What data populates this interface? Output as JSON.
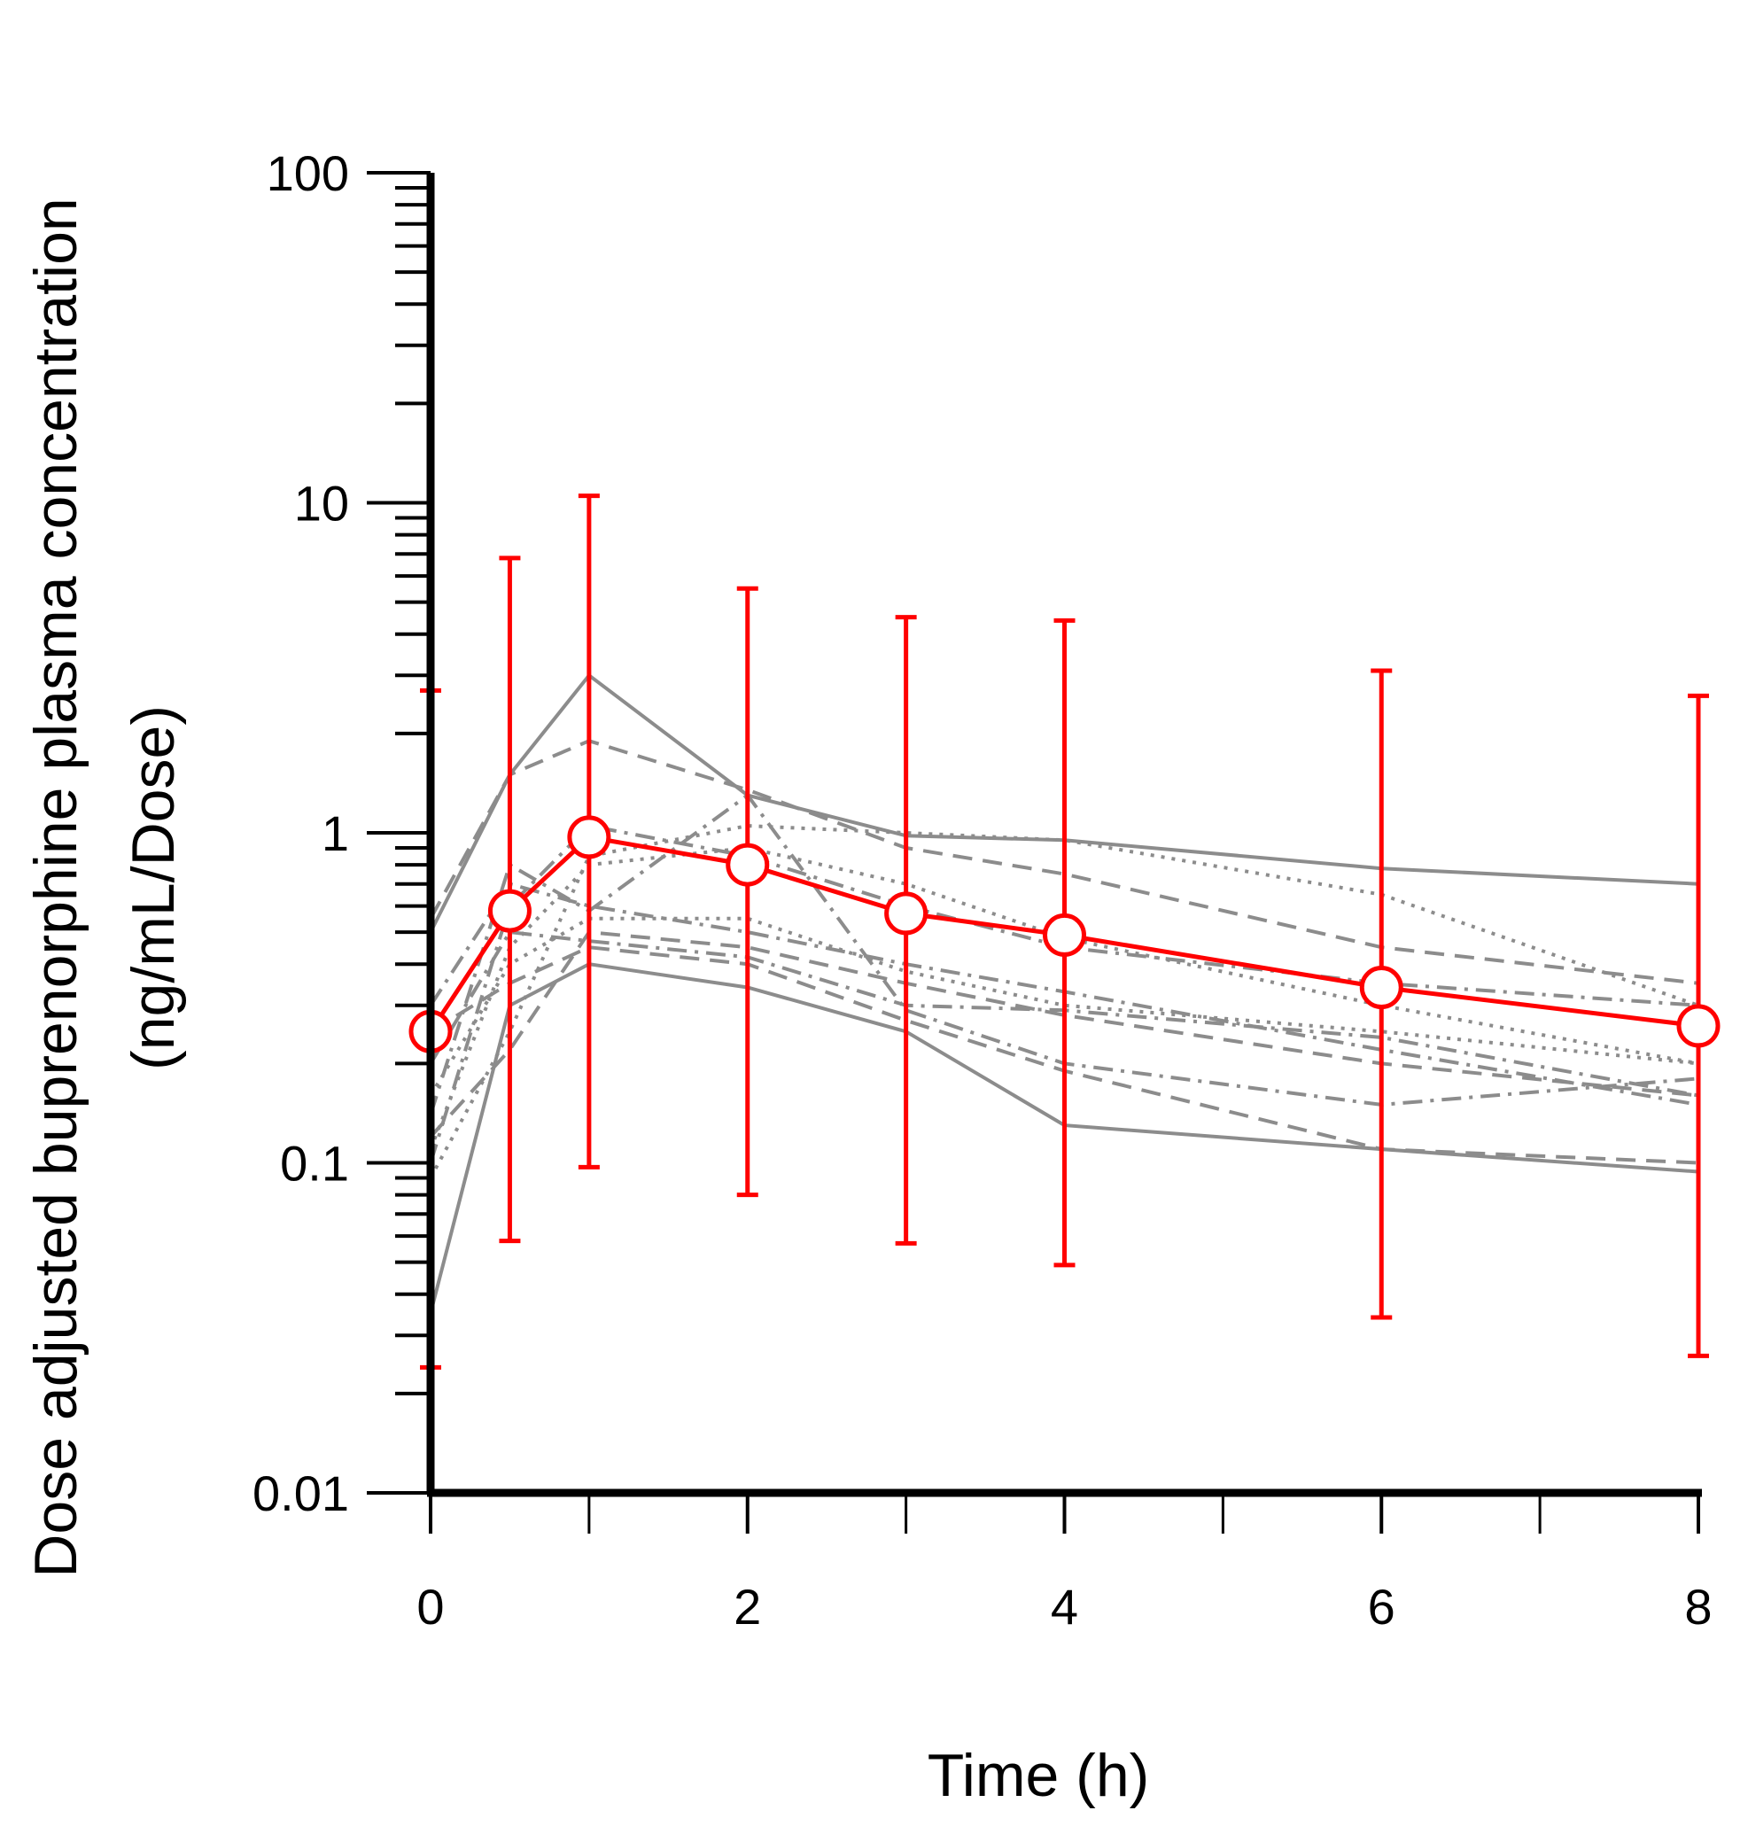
{
  "chart_data": {
    "type": "line",
    "title": "",
    "xlabel": "Time (h)",
    "ylabel_line1": "Dose adjusted buprenorphine plasma concentration",
    "ylabel_line2": "(ng/mL/Dose)",
    "yscale": "log",
    "ylim": [
      0.01,
      100
    ],
    "xlim": [
      0,
      8
    ],
    "grid": false,
    "x_ticks": [
      0,
      2,
      4,
      6,
      8
    ],
    "x_tick_labels": [
      "0",
      "2",
      "4",
      "6",
      "8"
    ],
    "x_minor_ticks": [
      1,
      3,
      5,
      7
    ],
    "y_ticks": [
      0.01,
      0.1,
      1,
      10,
      100
    ],
    "y_tick_labels": [
      "0.01",
      "0.1",
      "1",
      "10",
      "100"
    ],
    "mean": {
      "name": "Mean",
      "color": "#ff0000",
      "x": [
        0,
        0.5,
        1,
        2,
        3,
        4,
        6,
        8
      ],
      "y": [
        0.25,
        0.58,
        0.97,
        0.8,
        0.57,
        0.49,
        0.34,
        0.26
      ],
      "err_low": [
        0.024,
        0.058,
        0.097,
        0.08,
        0.057,
        0.049,
        0.034,
        0.026
      ],
      "err_high": [
        2.7,
        6.8,
        10.5,
        5.5,
        4.5,
        4.4,
        3.1,
        2.6
      ]
    },
    "individual_color": "#8c8c8c",
    "individual_x": [
      0,
      0.5,
      1,
      2,
      3,
      4,
      6,
      8
    ],
    "individuals": [
      {
        "dash": "solid",
        "y": [
          0.5,
          1.5,
          3.0,
          1.3,
          0.98,
          0.95,
          0.78,
          0.7
        ]
      },
      {
        "dash": "solid",
        "y": [
          0.035,
          0.3,
          0.4,
          0.34,
          0.25,
          0.13,
          0.11,
          0.094
        ]
      },
      {
        "dash": "dash",
        "y": [
          0.55,
          1.5,
          1.9,
          1.35,
          0.9,
          0.75,
          0.45,
          0.35
        ]
      },
      {
        "dash": "dashdot",
        "y": [
          0.14,
          0.8,
          0.58,
          1.3,
          0.29,
          0.2,
          0.15,
          0.18
        ]
      },
      {
        "dash": "dot",
        "y": [
          0.09,
          0.25,
          0.85,
          1.05,
          1.0,
          0.95,
          0.65,
          0.3
        ]
      },
      {
        "dash": "dashdot",
        "y": [
          0.1,
          0.6,
          1.05,
          0.85,
          0.6,
          0.45,
          0.35,
          0.3
        ]
      },
      {
        "dash": "dot",
        "y": [
          0.11,
          0.45,
          0.8,
          0.9,
          0.7,
          0.48,
          0.3,
          0.2
        ]
      },
      {
        "dash": "dashdot",
        "y": [
          0.3,
          0.7,
          0.6,
          0.5,
          0.4,
          0.33,
          0.22,
          0.15
        ]
      },
      {
        "dash": "dot",
        "y": [
          0.16,
          0.4,
          0.55,
          0.55,
          0.38,
          0.3,
          0.25,
          0.2
        ]
      },
      {
        "dash": "dash",
        "y": [
          0.12,
          0.22,
          0.5,
          0.45,
          0.35,
          0.28,
          0.2,
          0.16
        ]
      },
      {
        "dash": "dashdot",
        "y": [
          0.2,
          0.5,
          0.47,
          0.42,
          0.3,
          0.29,
          0.24,
          0.16
        ]
      },
      {
        "dash": "dash",
        "y": [
          0.25,
          0.35,
          0.45,
          0.4,
          0.27,
          0.19,
          0.11,
          0.1
        ]
      }
    ]
  }
}
